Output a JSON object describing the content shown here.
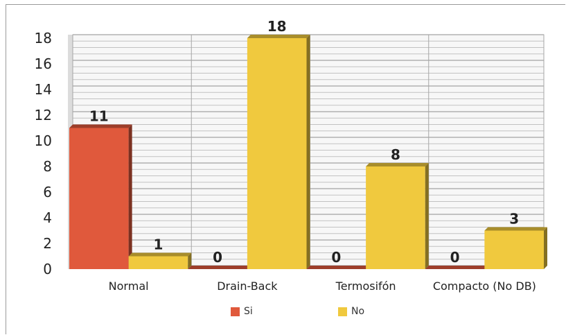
{
  "chart_data": {
    "type": "bar",
    "title": "",
    "xlabel": "",
    "ylabel": "",
    "categories": [
      "Normal",
      "Drain-Back",
      "Termosifón",
      "Compacto (No DB)"
    ],
    "series": [
      {
        "name": "Si",
        "values": [
          11,
          0,
          0,
          0
        ],
        "color": "#e0593c"
      },
      {
        "name": "No",
        "values": [
          1,
          18,
          8,
          3
        ],
        "color": "#f0c93e"
      }
    ],
    "ylim": [
      0,
      18
    ],
    "yticks": [
      0,
      2,
      4,
      6,
      8,
      10,
      12,
      14,
      16,
      18
    ],
    "grid": true,
    "legend": "bottom",
    "style": "3d"
  }
}
